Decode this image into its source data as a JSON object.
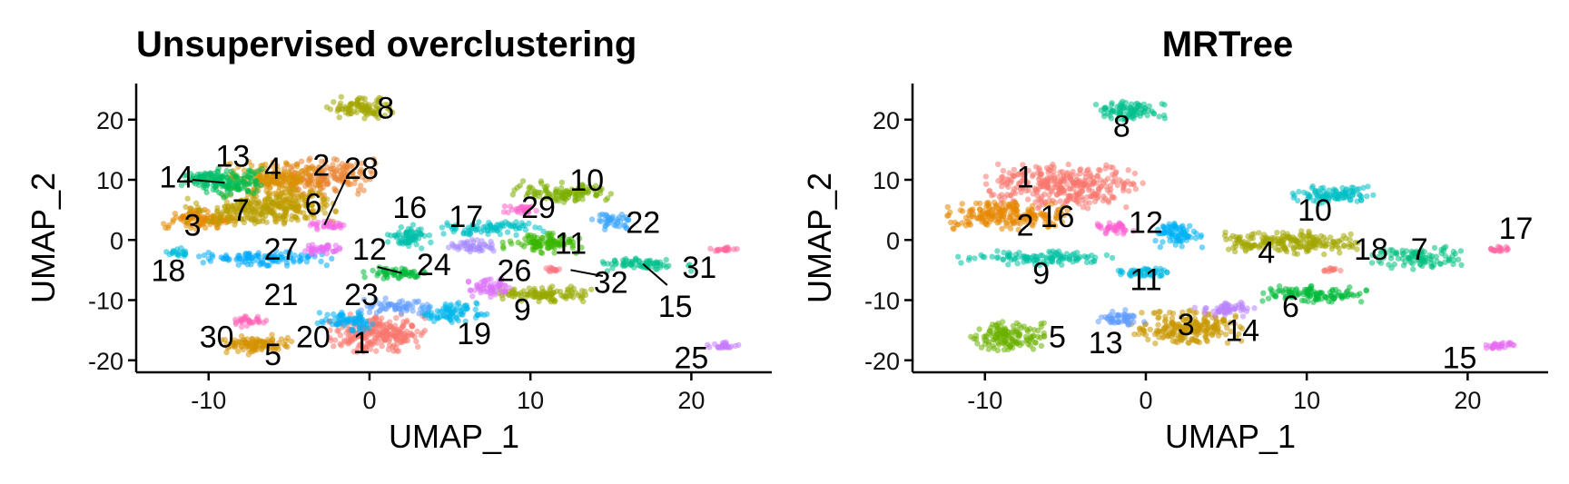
{
  "chart_data": [
    {
      "type": "scatter",
      "title": "Unsupervised overclustering",
      "xlabel": "UMAP_1",
      "ylabel": "UMAP_2",
      "xlim": [
        -14.5,
        25
      ],
      "ylim": [
        -22,
        26
      ],
      "xticks": [
        -10,
        0,
        10,
        20
      ],
      "yticks": [
        20,
        10,
        0,
        -10,
        -20
      ],
      "grid": false,
      "legend": "none",
      "clusters": [
        {
          "label": "1",
          "color": "#F8766D",
          "cx": 0.5,
          "cy": -15.5,
          "rx": 3.2,
          "ry": 3.2,
          "n": 240,
          "lx": -0.5,
          "ly": -17
        },
        {
          "label": "2",
          "color": "#EA8331",
          "cx": -3,
          "cy": 10.5,
          "rx": 3.5,
          "ry": 3.2,
          "n": 180,
          "lx": -3,
          "ly": 12.5
        },
        {
          "label": "3",
          "color": "#E38900",
          "cx": -10.5,
          "cy": 3.5,
          "rx": 2.3,
          "ry": 1.8,
          "n": 110,
          "lx": -11,
          "ly": 2.5
        },
        {
          "label": "4",
          "color": "#D89000",
          "cx": -6,
          "cy": 10,
          "rx": 3.0,
          "ry": 3.0,
          "n": 160,
          "lx": -6,
          "ly": 12
        },
        {
          "label": "5",
          "color": "#D39200",
          "cx": -7,
          "cy": -17.5,
          "rx": 2.2,
          "ry": 1.8,
          "n": 100,
          "lx": -6,
          "ly": -19
        },
        {
          "label": "6",
          "color": "#C49A00",
          "cx": -5,
          "cy": 6,
          "rx": 3.0,
          "ry": 3.0,
          "n": 160,
          "lx": -3.5,
          "ly": 6
        },
        {
          "label": "7",
          "color": "#B79F00",
          "cx": -8,
          "cy": 5,
          "rx": 3.5,
          "ry": 2.5,
          "n": 150,
          "lx": -8,
          "ly": 5
        },
        {
          "label": "8",
          "color": "#A3A500",
          "cx": -0.5,
          "cy": 22,
          "rx": 2.2,
          "ry": 1.8,
          "n": 90,
          "lx": 1,
          "ly": 22
        },
        {
          "label": "9",
          "color": "#97A900",
          "cx": 11,
          "cy": -9,
          "rx": 3.0,
          "ry": 1.3,
          "n": 110,
          "lx": 9.5,
          "ly": -11.5
        },
        {
          "label": "10",
          "color": "#7CAE00",
          "cx": 12,
          "cy": 8,
          "rx": 3.2,
          "ry": 1.8,
          "n": 110,
          "lx": 13.5,
          "ly": 10
        },
        {
          "label": "11",
          "color": "#39B600",
          "cx": 10.5,
          "cy": -0.5,
          "rx": 2.8,
          "ry": 1.7,
          "n": 100,
          "lx": 12.5,
          "ly": -0.5
        },
        {
          "label": "12",
          "color": "#00BA38",
          "cx": 1.5,
          "cy": -5.5,
          "rx": 2.0,
          "ry": 1.0,
          "n": 60,
          "lx": 0,
          "ly": -1.5
        },
        {
          "label": "13",
          "color": "#00BB4E",
          "cx": -8.5,
          "cy": 9.5,
          "rx": 2.2,
          "ry": 2.5,
          "n": 100,
          "lx": -8.5,
          "ly": 14
        },
        {
          "label": "14",
          "color": "#00BE6C",
          "cx": -10,
          "cy": 10,
          "rx": 1.8,
          "ry": 1.8,
          "n": 70,
          "lx": -12,
          "ly": 10.5
        },
        {
          "label": "15",
          "color": "#00C08B",
          "cx": 17,
          "cy": -4,
          "rx": 3.0,
          "ry": 1.2,
          "n": 70,
          "lx": 19,
          "ly": -11
        },
        {
          "label": "16",
          "color": "#00C0AB",
          "cx": 2.5,
          "cy": 0.5,
          "rx": 1.4,
          "ry": 2.2,
          "n": 70,
          "lx": 2.5,
          "ly": 5.5
        },
        {
          "label": "17",
          "color": "#00BFC4",
          "cx": 7.5,
          "cy": 2,
          "rx": 3.5,
          "ry": 1.2,
          "n": 80,
          "lx": 6,
          "ly": 4
        },
        {
          "label": "18",
          "color": "#00BBDB",
          "cx": -12,
          "cy": -2,
          "rx": 1.0,
          "ry": 1.0,
          "n": 20,
          "lx": -12.5,
          "ly": -5
        },
        {
          "label": "19",
          "color": "#00B6EB",
          "cx": 5,
          "cy": -12,
          "rx": 2.3,
          "ry": 1.7,
          "n": 80,
          "lx": 6.5,
          "ly": -15.5
        },
        {
          "label": "20",
          "color": "#00B0F6",
          "cx": -1.5,
          "cy": -13.5,
          "rx": 1.8,
          "ry": 1.7,
          "n": 70,
          "lx": -3.5,
          "ly": -16
        },
        {
          "label": "21",
          "color": "#00A9FF",
          "cx": -6.5,
          "cy": -3,
          "rx": 4.5,
          "ry": 1.3,
          "n": 110,
          "lx": -5.5,
          "ly": -9
        },
        {
          "label": "22",
          "color": "#35A2FF",
          "cx": 15,
          "cy": 3,
          "rx": 1.4,
          "ry": 1.4,
          "n": 40,
          "lx": 17,
          "ly": 3
        },
        {
          "label": "23",
          "color": "#619CFF",
          "cx": 1.5,
          "cy": -11,
          "rx": 2.2,
          "ry": 1.3,
          "n": 60,
          "lx": -0.5,
          "ly": -9
        },
        {
          "label": "24",
          "color": "#A58AFF",
          "cx": 6.5,
          "cy": -1,
          "rx": 1.6,
          "ry": 1.1,
          "n": 50,
          "lx": 4,
          "ly": -4
        },
        {
          "label": "25",
          "color": "#C77CFF",
          "cx": 22,
          "cy": -17.5,
          "rx": 1.0,
          "ry": 0.6,
          "n": 30,
          "lx": 20,
          "ly": -19.5
        },
        {
          "label": "26",
          "color": "#DC71FA",
          "cx": 7.5,
          "cy": -8,
          "rx": 1.5,
          "ry": 1.8,
          "n": 60,
          "lx": 9,
          "ly": -5
        },
        {
          "label": "27",
          "color": "#E76BF3",
          "cx": -3,
          "cy": -1.5,
          "rx": 1.2,
          "ry": 1.0,
          "n": 40,
          "lx": -5.5,
          "ly": -1.5
        },
        {
          "label": "28",
          "color": "#F564E3",
          "cx": -2.5,
          "cy": 2.5,
          "rx": 1.2,
          "ry": 0.8,
          "n": 30,
          "lx": -0.5,
          "ly": 12
        },
        {
          "label": "29",
          "color": "#FF61CC",
          "cx": 9.5,
          "cy": 5,
          "rx": 1.3,
          "ry": 0.8,
          "n": 30,
          "lx": 10.5,
          "ly": 5.5
        },
        {
          "label": "30",
          "color": "#FF63B6",
          "cx": -7.5,
          "cy": -13.5,
          "rx": 1.2,
          "ry": 1.0,
          "n": 30,
          "lx": -9.5,
          "ly": -16
        },
        {
          "label": "31",
          "color": "#FF689F",
          "cx": 22,
          "cy": -1.5,
          "rx": 0.9,
          "ry": 0.5,
          "n": 20,
          "lx": 20.5,
          "ly": -4.5
        },
        {
          "label": "32",
          "color": "#FC717F",
          "cx": 11.5,
          "cy": -5,
          "rx": 0.6,
          "ry": 0.5,
          "n": 12,
          "lx": 15,
          "ly": -7
        }
      ],
      "leaders": [
        {
          "from": [
            -11,
            10
          ],
          "to": [
            -9,
            9.5
          ]
        },
        {
          "from": [
            -1.5,
            10
          ],
          "to": [
            -2.8,
            2.5
          ]
        },
        {
          "from": [
            0.5,
            -4.5
          ],
          "to": [
            2,
            -5.5
          ]
        },
        {
          "from": [
            12.5,
            -5
          ],
          "to": [
            14.5,
            -6
          ]
        },
        {
          "from": [
            17,
            -4
          ],
          "to": [
            18.5,
            -7.5
          ]
        }
      ]
    },
    {
      "type": "scatter",
      "title": "MRTree",
      "xlabel": "UMAP_1",
      "ylabel": "UMAP_2",
      "xlim": [
        -14.5,
        25
      ],
      "ylim": [
        -22,
        26
      ],
      "xticks": [
        -10,
        0,
        10,
        20
      ],
      "yticks": [
        20,
        10,
        0,
        -10,
        -20
      ],
      "grid": false,
      "legend": "none",
      "clusters": [
        {
          "label": "1",
          "color": "#F8766D",
          "cx": -5,
          "cy": 9,
          "rx": 5.0,
          "ry": 3.8,
          "n": 320,
          "lx": -7.5,
          "ly": 10.5
        },
        {
          "label": "2",
          "color": "#E58700",
          "cx": -8.5,
          "cy": 4,
          "rx": 4.0,
          "ry": 2.3,
          "n": 200,
          "lx": -7.5,
          "ly": 2.5
        },
        {
          "label": "3",
          "color": "#C99800",
          "cx": 2.5,
          "cy": -14.5,
          "rx": 3.5,
          "ry": 2.8,
          "n": 220,
          "lx": 2.5,
          "ly": -14
        },
        {
          "label": "4",
          "color": "#A3A500",
          "cx": 9,
          "cy": -0.5,
          "rx": 4.3,
          "ry": 2.0,
          "n": 200,
          "lx": 7.5,
          "ly": -2
        },
        {
          "label": "5",
          "color": "#6BB100",
          "cx": -8.5,
          "cy": -16,
          "rx": 2.5,
          "ry": 2.5,
          "n": 140,
          "lx": -5.5,
          "ly": -16
        },
        {
          "label": "6",
          "color": "#00BA38",
          "cx": 10.5,
          "cy": -9,
          "rx": 3.3,
          "ry": 1.5,
          "n": 110,
          "lx": 9,
          "ly": -11
        },
        {
          "label": "7",
          "color": "#00BF7D",
          "cx": 17,
          "cy": -3,
          "rx": 3.0,
          "ry": 2.0,
          "n": 100,
          "lx": 17,
          "ly": -1.5
        },
        {
          "label": "8",
          "color": "#00C08B",
          "cx": -1,
          "cy": 21.5,
          "rx": 2.2,
          "ry": 1.6,
          "n": 90,
          "lx": -1.5,
          "ly": 19
        },
        {
          "label": "9",
          "color": "#00C1A3",
          "cx": -7,
          "cy": -3,
          "rx": 5.0,
          "ry": 1.2,
          "n": 110,
          "lx": -6.5,
          "ly": -5.5
        },
        {
          "label": "10",
          "color": "#00BFC4",
          "cx": 11.5,
          "cy": 7.5,
          "rx": 2.8,
          "ry": 1.5,
          "n": 100,
          "lx": 10.5,
          "ly": 5
        },
        {
          "label": "11",
          "color": "#00BAE0",
          "cx": 0,
          "cy": -5.5,
          "rx": 2.0,
          "ry": 1.0,
          "n": 60,
          "lx": 0,
          "ly": -6.5
        },
        {
          "label": "12",
          "color": "#00B0F6",
          "cx": 2,
          "cy": 1,
          "rx": 1.5,
          "ry": 2.3,
          "n": 80,
          "lx": 0,
          "ly": 3
        },
        {
          "label": "13",
          "color": "#619CFF",
          "cx": -1.5,
          "cy": -13,
          "rx": 1.5,
          "ry": 1.5,
          "n": 50,
          "lx": -2.5,
          "ly": -17
        },
        {
          "label": "14",
          "color": "#B983FF",
          "cx": 5,
          "cy": -11.5,
          "rx": 2.0,
          "ry": 1.4,
          "n": 60,
          "lx": 6,
          "ly": -15
        },
        {
          "label": "15",
          "color": "#E76BF3",
          "cx": 22,
          "cy": -17.5,
          "rx": 1.0,
          "ry": 0.6,
          "n": 30,
          "lx": 19.5,
          "ly": -19.5
        },
        {
          "label": "16",
          "color": "#FD61D1",
          "cx": -2,
          "cy": 2,
          "rx": 1.3,
          "ry": 1.0,
          "n": 40,
          "lx": -5.5,
          "ly": 4
        },
        {
          "label": "17",
          "color": "#FF67A4",
          "cx": 22,
          "cy": -1.5,
          "rx": 0.9,
          "ry": 0.5,
          "n": 20,
          "lx": 23,
          "ly": 2
        },
        {
          "label": "18",
          "color": "#F8766D",
          "cx": 11.5,
          "cy": -5,
          "rx": 0.6,
          "ry": 0.5,
          "n": 12,
          "lx": 14,
          "ly": -1.5
        }
      ],
      "leaders": []
    }
  ]
}
